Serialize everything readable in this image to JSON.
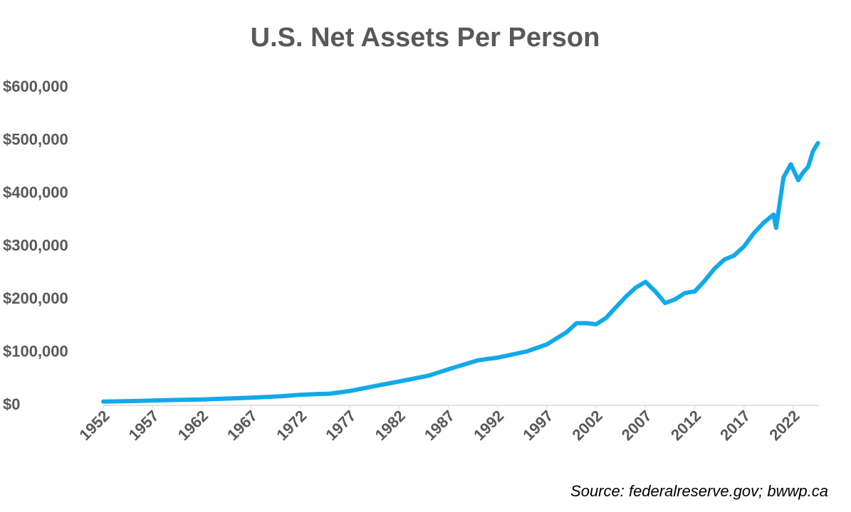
{
  "chart_data": {
    "type": "line",
    "title": "U.S. Net Assets Per Person",
    "source": "Source: federalreserve.gov; bwwp.ca",
    "x": [
      1952,
      1955,
      1957,
      1960,
      1962,
      1965,
      1967,
      1970,
      1972,
      1974,
      1975,
      1977,
      1980,
      1982,
      1985,
      1987,
      1990,
      1992,
      1995,
      1997,
      1999,
      2000,
      2001,
      2002,
      2003,
      2004,
      2005,
      2006,
      2007,
      2008,
      2009,
      2010,
      2011,
      2012,
      2013,
      2014,
      2015,
      2016,
      2017,
      2018,
      2019,
      2020,
      2020.25,
      2021,
      2021.75,
      2022.5,
      2023,
      2023.5,
      2024,
      2024.5
    ],
    "values": [
      7000,
      8000,
      9000,
      10500,
      11000,
      13000,
      14500,
      17000,
      20000,
      21500,
      22000,
      27000,
      38000,
      45000,
      56000,
      68000,
      85000,
      90000,
      102000,
      115000,
      138000,
      155000,
      155000,
      153000,
      165000,
      185000,
      205000,
      222000,
      233000,
      215000,
      193000,
      200000,
      212000,
      215000,
      235000,
      258000,
      275000,
      283000,
      300000,
      325000,
      345000,
      360000,
      335000,
      430000,
      455000,
      425000,
      440000,
      450000,
      480000,
      495000
    ],
    "color": "#12a9ea",
    "xlim": [
      1952,
      2024.6
    ],
    "xticks": [
      1952,
      1957,
      1962,
      1967,
      1972,
      1977,
      1982,
      1987,
      1992,
      1997,
      2002,
      2007,
      2012,
      2017,
      2022
    ],
    "ylim": [
      0,
      600000
    ],
    "yticks": [
      {
        "value": 0,
        "label": "$0"
      },
      {
        "value": 100000,
        "label": "$100,000"
      },
      {
        "value": 200000,
        "label": "$200,000"
      },
      {
        "value": 300000,
        "label": "$300,000"
      },
      {
        "value": 400000,
        "label": "$400,000"
      },
      {
        "value": 500000,
        "label": "$500,000"
      },
      {
        "value": 600000,
        "label": "$600,000"
      }
    ],
    "grid": false
  }
}
